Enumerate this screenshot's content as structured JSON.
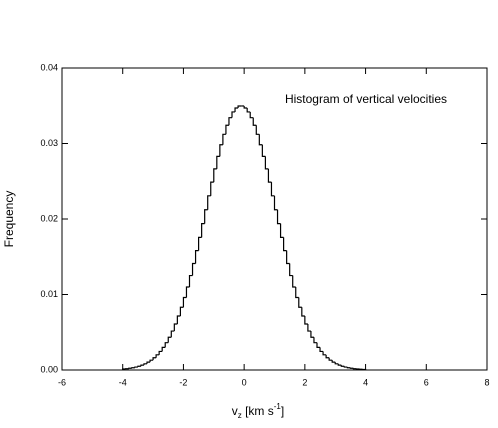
{
  "chart_data": {
    "type": "histogram",
    "title": "Histogram of vertical velocities",
    "xlabel": [
      "v",
      "z",
      " [km s",
      "-1",
      "]"
    ],
    "ylabel": "Frequency",
    "bins": [
      -4.0,
      -3.9,
      -3.8,
      -3.7,
      -3.6,
      -3.5,
      -3.4,
      -3.3,
      -3.2,
      -3.1,
      -3.0,
      -2.9,
      -2.8,
      -2.7,
      -2.6,
      -2.5,
      -2.4,
      -2.3,
      -2.2,
      -2.1,
      -2.0,
      -1.9,
      -1.8,
      -1.7,
      -1.6,
      -1.5,
      -1.4,
      -1.3,
      -1.2,
      -1.1,
      -1.0,
      -0.9,
      -0.8,
      -0.7,
      -0.6,
      -0.5,
      -0.4,
      -0.3,
      -0.2,
      -0.1,
      0.0,
      0.1,
      0.2,
      0.3,
      0.4,
      0.5,
      0.6,
      0.7,
      0.8,
      0.9,
      1.0,
      1.1,
      1.2,
      1.3,
      1.4,
      1.5,
      1.6,
      1.7,
      1.8,
      1.9,
      2.0,
      2.1,
      2.2,
      2.3,
      2.4,
      2.5,
      2.6,
      2.7,
      2.8,
      2.9,
      3.0,
      3.1,
      3.2,
      3.3,
      3.4,
      3.5,
      3.6,
      3.7,
      3.8,
      3.9,
      4.0
    ],
    "values": [
      0.00013,
      0.00017,
      0.00023,
      0.0003,
      0.00039,
      0.0005,
      0.00065,
      0.00082,
      0.00104,
      0.0013,
      0.00162,
      0.00201,
      0.00246,
      0.003,
      0.00362,
      0.00434,
      0.00516,
      0.00609,
      0.00715,
      0.00831,
      0.0096,
      0.01099,
      0.01251,
      0.01411,
      0.01581,
      0.01757,
      0.01939,
      0.02123,
      0.02307,
      0.02488,
      0.02664,
      0.02829,
      0.02983,
      0.03122,
      0.03242,
      0.03342,
      0.03418,
      0.0347,
      0.03497,
      0.03497,
      0.0347,
      0.03418,
      0.03342,
      0.03242,
      0.03122,
      0.02983,
      0.02829,
      0.02664,
      0.02488,
      0.02307,
      0.02123,
      0.01939,
      0.01757,
      0.01581,
      0.01411,
      0.01251,
      0.01099,
      0.0096,
      0.00831,
      0.00715,
      0.00609,
      0.00516,
      0.00434,
      0.00362,
      0.003,
      0.00246,
      0.00201,
      0.00162,
      0.0013,
      0.00104,
      0.00082,
      0.00065,
      0.0005,
      0.00039,
      0.0003,
      0.00023,
      0.00017,
      0.00013,
      0.0001,
      7e-05
    ],
    "color": "#000000",
    "xlim": [
      -6,
      8
    ],
    "xticks": [
      -6,
      -4,
      -2,
      0,
      2,
      4,
      6,
      8
    ],
    "ylim": [
      0,
      0.04
    ],
    "yticks": [
      {
        "value": 0,
        "label": "0.00"
      },
      0.01,
      0.02,
      0.03,
      0.04
    ]
  }
}
